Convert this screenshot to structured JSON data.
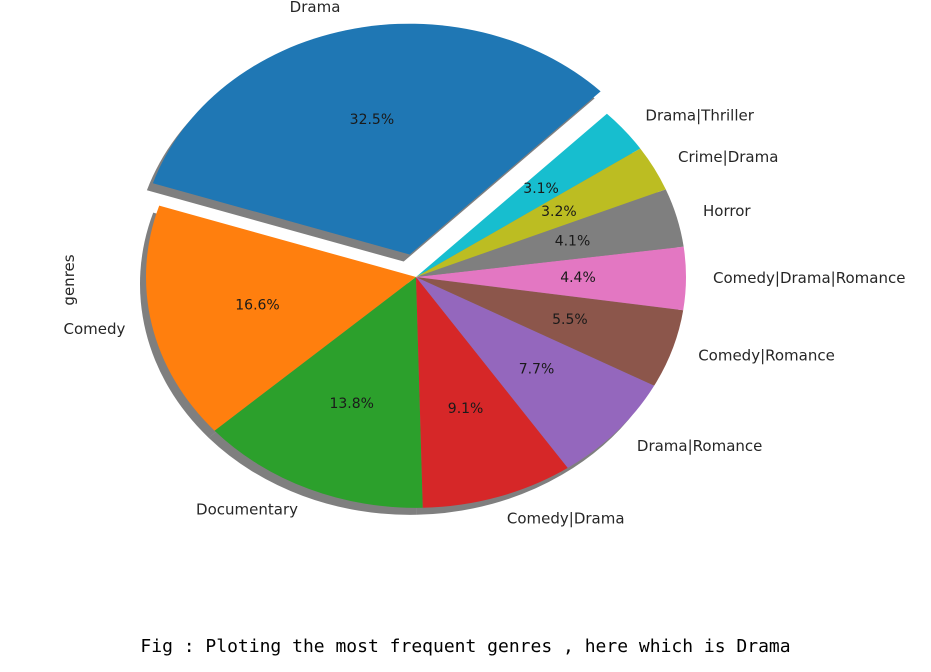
{
  "chart_data": {
    "type": "pie",
    "ylabel": "genres",
    "categories": [
      "Drama",
      "Comedy",
      "Documentary",
      "Comedy|Drama",
      "Drama|Romance",
      "Comedy|Romance",
      "Comedy|Drama|Romance",
      "Horror",
      "Crime|Drama",
      "Drama|Thriller"
    ],
    "values": [
      32.5,
      16.6,
      13.8,
      9.1,
      7.7,
      5.5,
      4.4,
      4.1,
      3.2,
      3.1
    ],
    "percent_labels": [
      "32.5%",
      "16.6%",
      "13.8%",
      "9.1%",
      "7.7%",
      "5.5%",
      "4.4%",
      "4.1%",
      "3.2%",
      "3.1%"
    ],
    "colors": [
      "#1f77b4",
      "#ff7f0e",
      "#2ca02c",
      "#d62728",
      "#9467bd",
      "#8c564b",
      "#e377c2",
      "#7f7f7f",
      "#bcbd22",
      "#17becf"
    ],
    "explode": [
      0.1,
      0,
      0,
      0,
      0,
      0,
      0,
      0,
      0,
      0
    ],
    "shadow": true,
    "start_angle_deg": 45
  },
  "caption": "Fig : Ploting the most frequent genres , here which is Drama"
}
